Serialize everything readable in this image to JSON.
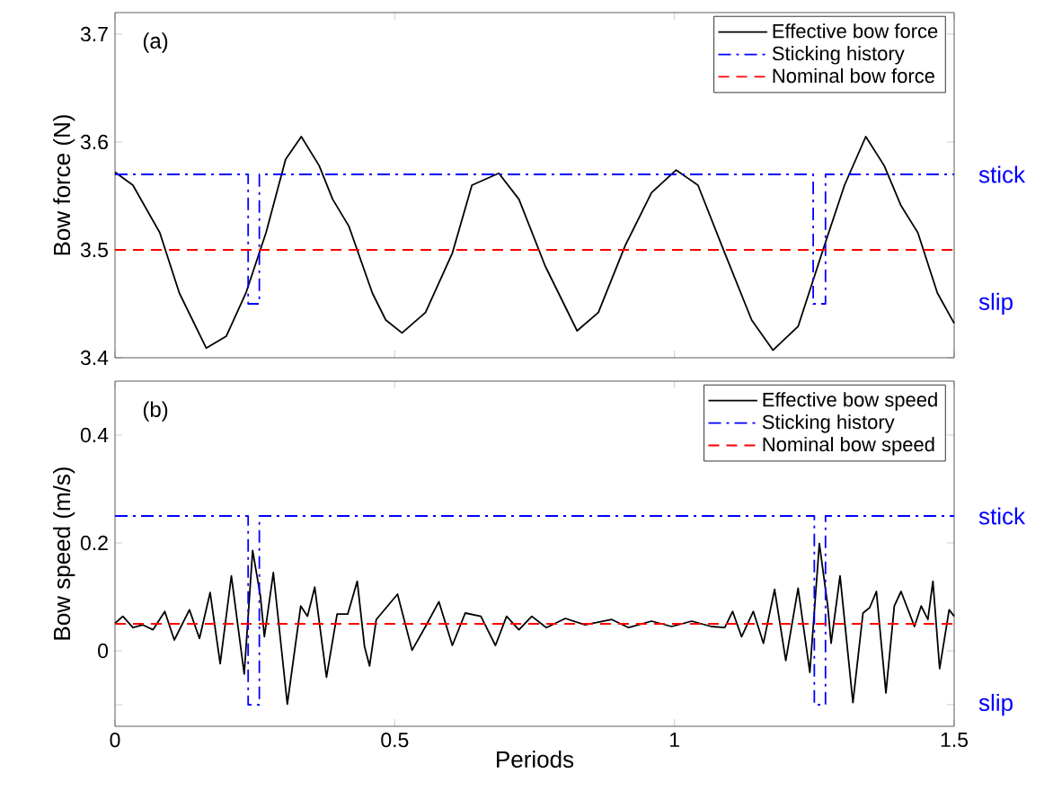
{
  "chart_data": [
    {
      "type": "line",
      "ylabel": "Bow force (N)",
      "xlim": [
        0,
        1.5
      ],
      "ylim": [
        3.4,
        3.72
      ],
      "xticks": [
        0,
        0.5,
        1,
        1.5
      ],
      "yticks": [
        3.4,
        3.5,
        3.6,
        3.7
      ],
      "tick_labels": "y",
      "legend": "top right",
      "annotations": [
        "(a)",
        "stick",
        "slip"
      ],
      "series": [
        {
          "name": "Effective bow force",
          "color": "#000000",
          "line_style": "solid",
          "x": [
            0,
            0.032,
            0.08,
            0.115,
            0.163,
            0.199,
            0.234,
            0.27,
            0.305,
            0.333,
            0.365,
            0.389,
            0.418,
            0.46,
            0.484,
            0.513,
            0.555,
            0.603,
            0.638,
            0.686,
            0.722,
            0.769,
            0.826,
            0.864,
            0.912,
            0.959,
            1.003,
            1.042,
            1.09,
            1.138,
            1.176,
            1.221,
            1.268,
            1.304,
            1.342,
            1.375,
            1.405,
            1.435,
            1.47,
            1.5
          ],
          "values": [
            3.572,
            3.56,
            3.516,
            3.46,
            3.409,
            3.42,
            3.46,
            3.516,
            3.584,
            3.605,
            3.578,
            3.547,
            3.522,
            3.46,
            3.435,
            3.423,
            3.442,
            3.497,
            3.56,
            3.571,
            3.547,
            3.485,
            3.425,
            3.442,
            3.504,
            3.553,
            3.574,
            3.56,
            3.497,
            3.435,
            3.407,
            3.429,
            3.504,
            3.56,
            3.605,
            3.578,
            3.541,
            3.516,
            3.46,
            3.432
          ]
        },
        {
          "name": "Sticking history",
          "color": "#0000ff",
          "line_style": "dashdot",
          "x": [
            0,
            0.238,
            0.238,
            0.258,
            0.258,
            1.248,
            1.248,
            1.27,
            1.27,
            1.5
          ],
          "values": [
            3.57,
            3.57,
            3.45,
            3.45,
            3.57,
            3.57,
            3.45,
            3.45,
            3.57,
            3.57
          ]
        },
        {
          "name": "Nominal bow force",
          "color": "#ff0000",
          "line_style": "dashed",
          "x": [
            0,
            1.5
          ],
          "values": [
            3.5,
            3.5
          ]
        }
      ]
    },
    {
      "type": "line",
      "xlabel": "Periods",
      "ylabel": "Bow speed (m/s)",
      "xlim": [
        0,
        1.5
      ],
      "ylim": [
        -0.14,
        0.5
      ],
      "xticks": [
        0,
        0.5,
        1,
        1.5
      ],
      "yticks": [
        {
          "value": -0.1,
          "label": null
        },
        0,
        0.2,
        0.4
      ],
      "legend": "top right",
      "annotations": [
        "(b)",
        "stick",
        "slip"
      ],
      "series": [
        {
          "name": "Effective bow speed",
          "color": "#000000",
          "line_style": "solid",
          "x": [
            0,
            0.014,
            0.032,
            0.05,
            0.068,
            0.089,
            0.106,
            0.133,
            0.151,
            0.17,
            0.188,
            0.208,
            0.231,
            0.246,
            0.26,
            0.267,
            0.283,
            0.308,
            0.332,
            0.344,
            0.357,
            0.378,
            0.397,
            0.416,
            0.433,
            0.446,
            0.455,
            0.467,
            0.505,
            0.531,
            0.555,
            0.579,
            0.603,
            0.626,
            0.654,
            0.68,
            0.7,
            0.722,
            0.745,
            0.771,
            0.805,
            0.84,
            0.888,
            0.918,
            0.959,
            0.995,
            1.031,
            1.066,
            1.09,
            1.104,
            1.12,
            1.141,
            1.159,
            1.179,
            1.199,
            1.221,
            1.242,
            1.259,
            1.274,
            1.28,
            1.296,
            1.319,
            1.337,
            1.349,
            1.361,
            1.378,
            1.393,
            1.405,
            1.429,
            1.441,
            1.453,
            1.462,
            1.474,
            1.491,
            1.5
          ],
          "values": [
            0.051,
            0.064,
            0.043,
            0.048,
            0.039,
            0.073,
            0.02,
            0.076,
            0.023,
            0.108,
            -0.024,
            0.139,
            -0.043,
            0.186,
            0.101,
            0.026,
            0.145,
            -0.099,
            0.083,
            0.064,
            0.118,
            -0.049,
            0.068,
            0.068,
            0.129,
            0.008,
            -0.028,
            0.058,
            0.105,
            0.001,
            0.045,
            0.091,
            0.01,
            0.07,
            0.064,
            0.01,
            0.064,
            0.039,
            0.064,
            0.043,
            0.06,
            0.048,
            0.058,
            0.043,
            0.055,
            0.045,
            0.055,
            0.045,
            0.043,
            0.073,
            0.026,
            0.073,
            0.014,
            0.114,
            -0.018,
            0.116,
            -0.04,
            0.199,
            0.083,
            0.014,
            0.139,
            -0.096,
            0.07,
            0.08,
            0.11,
            -0.078,
            0.083,
            0.11,
            0.045,
            0.083,
            0.058,
            0.129,
            -0.033,
            0.076,
            0.064
          ]
        },
        {
          "name": "Sticking history",
          "color": "#0000ff",
          "line_style": "dashdot",
          "x": [
            0,
            0.238,
            0.238,
            0.258,
            0.258,
            1.25,
            1.25,
            1.27,
            1.27,
            1.5
          ],
          "values": [
            0.25,
            0.25,
            -0.1,
            -0.1,
            0.25,
            0.25,
            -0.1,
            -0.1,
            0.25,
            0.25
          ]
        },
        {
          "name": "Nominal bow speed",
          "color": "#ff0000",
          "line_style": "dashed",
          "x": [
            0,
            1.5
          ],
          "values": [
            0.05,
            0.05
          ]
        }
      ]
    }
  ]
}
